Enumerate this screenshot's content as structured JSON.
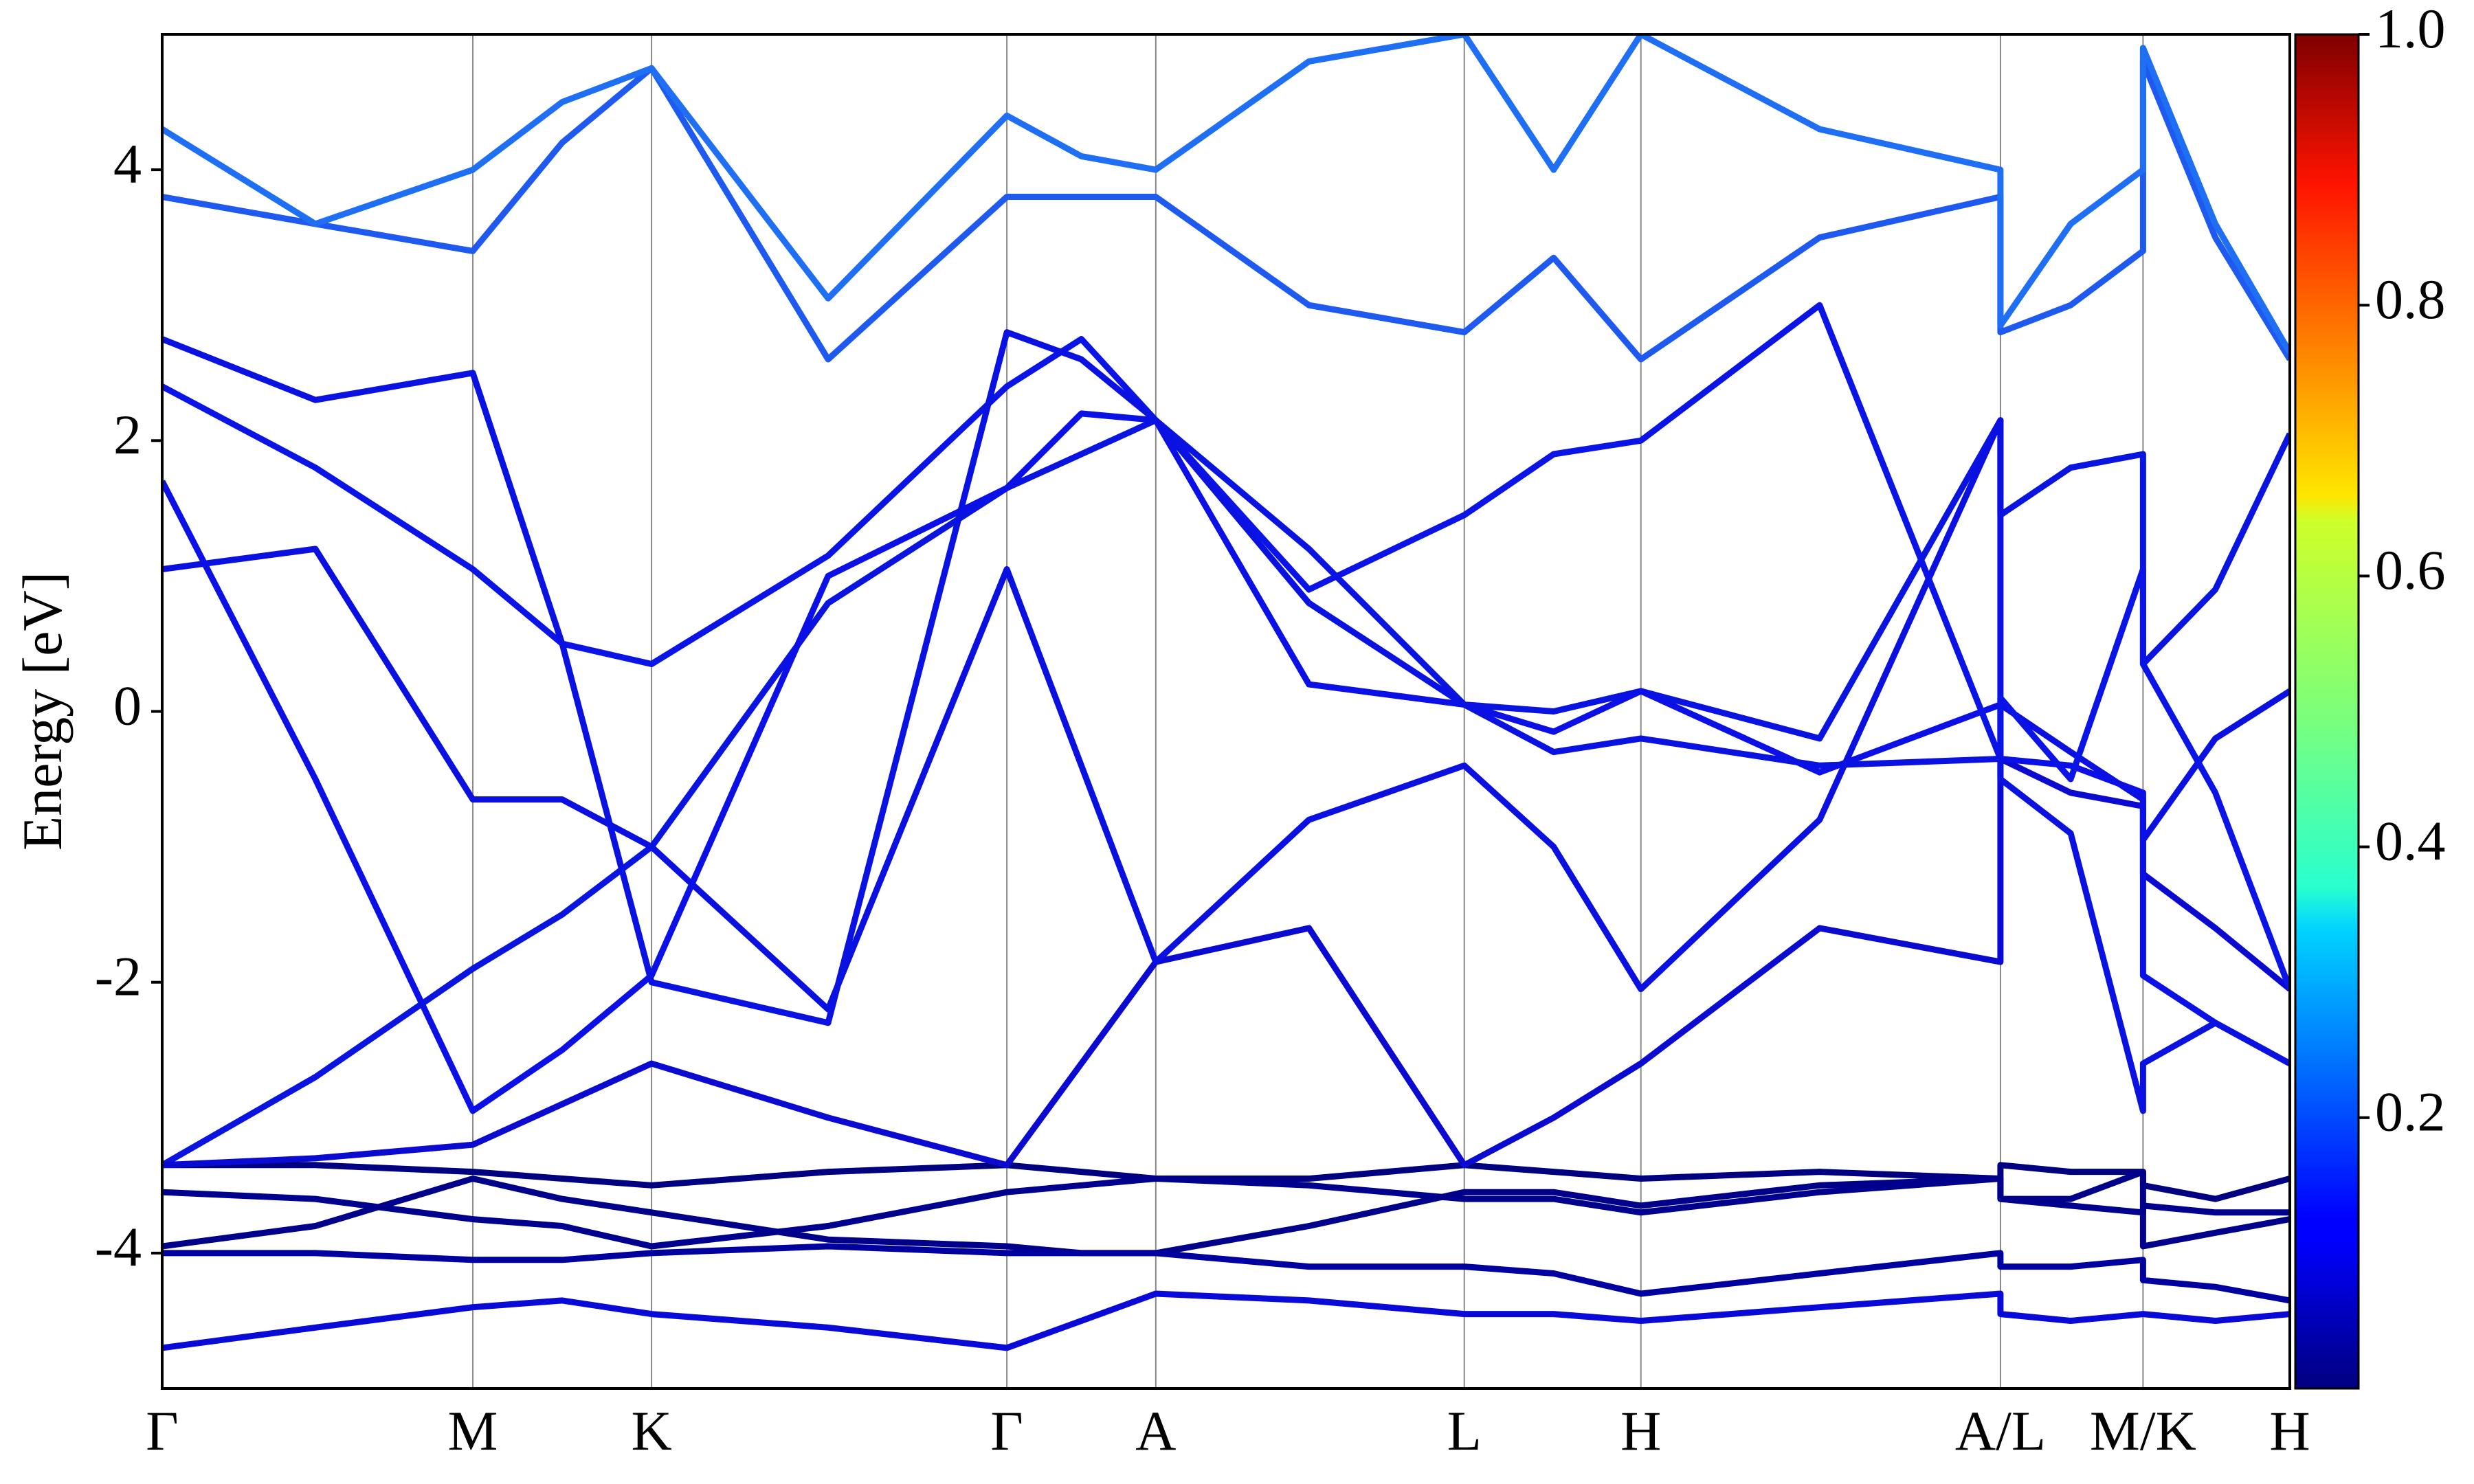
{
  "chart_data": {
    "type": "line",
    "ylabel": "Energy [eV]",
    "xlim": [
      0,
      1
    ],
    "ylim": [
      -5,
      5
    ],
    "yticks": [
      -4,
      -2,
      0,
      2,
      4
    ],
    "xticks": [
      {
        "value": 0,
        "label": "Γ"
      },
      {
        "value": 0.146,
        "label": "M"
      },
      {
        "value": 0.23,
        "label": "K"
      },
      {
        "value": 0.397,
        "label": "Γ"
      },
      {
        "value": 0.467,
        "label": "A"
      },
      {
        "value": 0.612,
        "label": "L"
      },
      {
        "value": 0.695,
        "label": "H"
      },
      {
        "value": 0.864,
        "label": "A/L"
      },
      {
        "value": 0.931,
        "label": "M/K"
      },
      {
        "value": 1,
        "label": "H"
      }
    ],
    "x": [
      0,
      0.072,
      0.146,
      0.188,
      0.23,
      0.313,
      0.397,
      0.432,
      0.467,
      0.539,
      0.612,
      0.654,
      0.695,
      0.779,
      0.864,
      0.864,
      0.897,
      0.931,
      0.931,
      0.965,
      1
    ],
    "series": [
      {
        "color": "#000080",
        "values": [
          -3.35,
          -3.35,
          -3.4,
          -3.45,
          -3.5,
          -3.4,
          -3.35,
          -3.4,
          -3.45,
          -3.45,
          -3.35,
          -3.4,
          -3.45,
          -3.4,
          -3.45,
          -3.35,
          -3.4,
          -3.4,
          -3.5,
          -3.6,
          -3.45
        ]
      },
      {
        "color": "#00008f",
        "values": [
          -3.55,
          -3.6,
          -3.75,
          -3.8,
          -3.95,
          -3.8,
          -3.55,
          -3.5,
          -3.45,
          -3.5,
          -3.6,
          -3.6,
          -3.7,
          -3.55,
          -3.45,
          -3.6,
          -3.65,
          -3.7,
          -3.65,
          -3.7,
          -3.7
        ]
      },
      {
        "color": "#00008a",
        "values": [
          -3.95,
          -3.8,
          -3.45,
          -3.6,
          -3.7,
          -3.9,
          -3.95,
          -4.0,
          -4.0,
          -3.8,
          -3.55,
          -3.55,
          -3.65,
          -3.5,
          -3.45,
          -3.6,
          -3.6,
          -3.4,
          -3.95,
          -3.85,
          -3.75
        ]
      },
      {
        "color": "#0000a0",
        "values": [
          -4.0,
          -4.0,
          -4.05,
          -4.05,
          -4.0,
          -3.95,
          -4.0,
          -4.0,
          -4.0,
          -4.1,
          -4.1,
          -4.15,
          -4.3,
          -4.15,
          -4.0,
          -4.1,
          -4.1,
          -4.05,
          -4.2,
          -4.25,
          -4.35
        ]
      },
      {
        "color": "#0a0ad8",
        "values": [
          -4.7,
          -4.55,
          -4.4,
          -4.35,
          -4.45,
          -4.55,
          -4.7,
          -4.5,
          -4.3,
          -4.35,
          -4.45,
          -4.45,
          -4.5,
          -4.4,
          -4.3,
          -4.45,
          -4.5,
          -4.45,
          -4.45,
          -4.5,
          -4.45
        ]
      },
      {
        "color": "#0a14e0",
        "values": [
          -3.35,
          -2.7,
          -1.9,
          -1.5,
          -1.0,
          0.8,
          1.65,
          1.9,
          2.15,
          1.2,
          0.05,
          0.0,
          0.15,
          -0.2,
          2.15,
          1.45,
          1.8,
          1.9,
          0.35,
          0.9,
          2.05
        ]
      },
      {
        "color": "#0a0ad0",
        "values": [
          -3.35,
          -3.3,
          -3.2,
          -2.9,
          -2.6,
          -3.0,
          -3.35,
          -2.6,
          -1.85,
          -1.6,
          -3.35,
          -3.0,
          -2.6,
          -1.6,
          -1.85,
          -0.35,
          -0.6,
          -0.7,
          -1.2,
          -1.6,
          -2.05
        ]
      },
      {
        "color": "#0a10e0",
        "values": [
          1.05,
          1.2,
          -0.65,
          -0.65,
          -1.0,
          -2.2,
          1.05,
          -0.4,
          -1.85,
          -0.8,
          -0.4,
          -1.0,
          -2.05,
          -0.8,
          2.15,
          0.05,
          -0.3,
          -0.65,
          -0.95,
          -0.2,
          0.15
        ]
      },
      {
        "color": "#0a10e6",
        "values": [
          1.7,
          -0.5,
          -2.95,
          -2.5,
          -1.95,
          1.0,
          1.65,
          2.2,
          2.15,
          0.2,
          0.05,
          -0.15,
          0.15,
          -0.45,
          0.05,
          -0.35,
          -0.4,
          -0.6,
          -1.95,
          -2.3,
          -2.6
        ]
      },
      {
        "color": "#0a14e6",
        "values": [
          2.4,
          1.8,
          1.05,
          0.5,
          0.35,
          1.15,
          2.4,
          2.75,
          2.15,
          0.9,
          1.45,
          1.9,
          2.0,
          3.0,
          -0.35,
          0.1,
          -0.5,
          1.05,
          0.35,
          -0.6,
          -2.05
        ]
      },
      {
        "color": "#0a12e2",
        "values": [
          2.75,
          2.3,
          2.5,
          0.5,
          -2.0,
          -2.3,
          2.8,
          2.6,
          2.15,
          0.8,
          0.05,
          -0.3,
          -0.2,
          -0.4,
          -0.35,
          -0.5,
          -0.9,
          -2.95,
          -2.6,
          -2.3,
          -2.6
        ]
      },
      {
        "color": "#1e5af0",
        "values": [
          3.8,
          3.6,
          3.4,
          4.2,
          4.75,
          2.6,
          3.8,
          3.8,
          3.8,
          3.0,
          2.8,
          3.35,
          2.6,
          3.5,
          3.8,
          2.8,
          3.0,
          3.4,
          4.8,
          3.5,
          2.6
        ]
      },
      {
        "color": "#1f6ff5",
        "values": [
          4.3,
          3.6,
          4.0,
          4.5,
          4.75,
          3.05,
          4.4,
          4.1,
          4.0,
          4.8,
          5,
          4.0,
          5,
          4.3,
          4.0,
          2.85,
          3.6,
          4.0,
          4.9,
          3.6,
          2.65
        ]
      }
    ],
    "colorbar": {
      "colormap": "jet",
      "lim": [
        0,
        1
      ],
      "ticks": [
        0.2,
        0.4,
        0.6,
        0.8,
        {
          "value": 1,
          "label": "1.0"
        }
      ]
    }
  }
}
